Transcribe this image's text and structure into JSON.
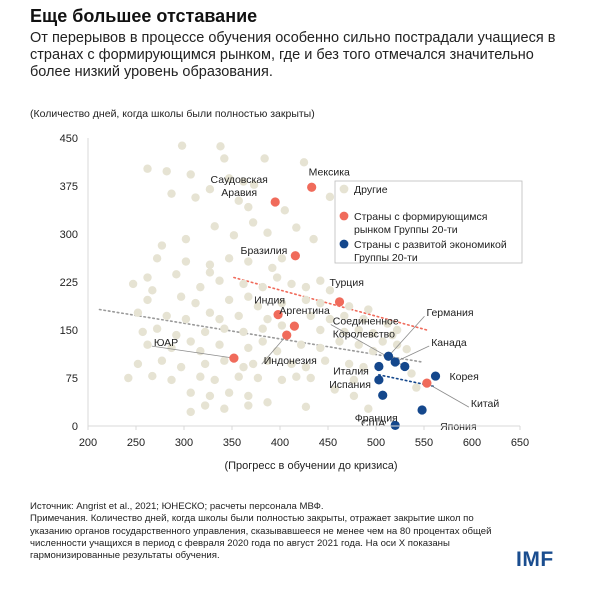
{
  "title": "Еще большее отставание",
  "subtitle": "От перерывов в процессе обучения особенно сильно пострадали учащиеся в странах с формирующимся рынком, где и без того отмечался значительно более низкий уровень образования.",
  "unit_note": "(Количество дней, когда школы были полностью закрыты)",
  "footer": {
    "source": "Источник: Angrist et al., 2021; ЮНЕСКО; расчеты персонала МВФ.",
    "note": "Примечания. Количество дней, когда школы были полностью закрыты, отражает закрытие школ по указанию органов государственного управления, сказывавшееся не менее чем на 80 процентах общей численности учащихся в период с февраля 2020 года по август 2021 года. На оси X показаны гармонизированные результаты обучения."
  },
  "logo": "IMF",
  "colors": {
    "other": "#e6e3d3",
    "emerging": "#f06b5b",
    "advanced": "#14478c",
    "axis": "#d9d9d9",
    "label": "#222222"
  },
  "chart_data": {
    "type": "scatter",
    "xlabel": "(Прогресс в обучении до кризиса)",
    "ylabel": "",
    "xlim": [
      200,
      650
    ],
    "ylim": [
      0,
      450
    ],
    "xticks": [
      "200",
      "250",
      "300",
      "350",
      "400",
      "450",
      "500",
      "550",
      "600",
      "650"
    ],
    "yticks": [
      "0",
      "75",
      "150",
      "225",
      "300",
      "375",
      "450"
    ],
    "legend": {
      "placement": "top-right",
      "entries": [
        "Другие",
        "Страны с формирующимся рынком Группы 20-ти",
        "Страны с развитой экономикой Группы 20-ти"
      ]
    },
    "series": [
      {
        "name": "Страны с формирующимся рынком Группы 20-ти",
        "points": [
          {
            "label": "Мексика",
            "x": 433,
            "y": 373
          },
          {
            "label": "Саудовская Аравия",
            "x": 395,
            "y": 350
          },
          {
            "label": "Бразилия",
            "x": 416,
            "y": 266
          },
          {
            "label": "Турция",
            "x": 462,
            "y": 194
          },
          {
            "label": "Индия",
            "x": 398,
            "y": 174
          },
          {
            "label": "Аргентина",
            "x": 415,
            "y": 156
          },
          {
            "label": "Индонезия",
            "x": 407,
            "y": 142
          },
          {
            "label": "ЮАР",
            "x": 352,
            "y": 106
          },
          {
            "label": "Китай",
            "x": 553,
            "y": 67
          }
        ]
      },
      {
        "name": "Страны с развитой экономикой Группы 20-ти",
        "points": [
          {
            "label": "Германия",
            "x": 513,
            "y": 109
          },
          {
            "label": "Канада",
            "x": 520,
            "y": 100
          },
          {
            "label": "Соединенное Королевство",
            "x": 530,
            "y": 93
          },
          {
            "label": "Италия",
            "x": 503,
            "y": 93
          },
          {
            "label": "Корея",
            "x": 562,
            "y": 78
          },
          {
            "label": "Испания",
            "x": 503,
            "y": 72
          },
          {
            "label": "Франция",
            "x": 507,
            "y": 48
          },
          {
            "label": "Япония",
            "x": 548,
            "y": 25
          },
          {
            "label": "США",
            "x": 520,
            "y": 1
          }
        ]
      },
      {
        "name": "Другие",
        "points": [
          {
            "x": 298,
            "y": 438
          },
          {
            "x": 338,
            "y": 437
          },
          {
            "x": 342,
            "y": 418
          },
          {
            "x": 384,
            "y": 418
          },
          {
            "x": 425,
            "y": 412
          },
          {
            "x": 262,
            "y": 402
          },
          {
            "x": 282,
            "y": 398
          },
          {
            "x": 307,
            "y": 393
          },
          {
            "x": 347,
            "y": 387
          },
          {
            "x": 362,
            "y": 382
          },
          {
            "x": 373,
            "y": 377
          },
          {
            "x": 327,
            "y": 370
          },
          {
            "x": 287,
            "y": 363
          },
          {
            "x": 312,
            "y": 357
          },
          {
            "x": 357,
            "y": 352
          },
          {
            "x": 367,
            "y": 342
          },
          {
            "x": 405,
            "y": 337
          },
          {
            "x": 452,
            "y": 358
          },
          {
            "x": 417,
            "y": 310
          },
          {
            "x": 372,
            "y": 318
          },
          {
            "x": 332,
            "y": 312
          },
          {
            "x": 302,
            "y": 292
          },
          {
            "x": 277,
            "y": 282
          },
          {
            "x": 352,
            "y": 298
          },
          {
            "x": 387,
            "y": 302
          },
          {
            "x": 435,
            "y": 292
          },
          {
            "x": 272,
            "y": 262
          },
          {
            "x": 302,
            "y": 257
          },
          {
            "x": 327,
            "y": 252
          },
          {
            "x": 347,
            "y": 262
          },
          {
            "x": 367,
            "y": 257
          },
          {
            "x": 392,
            "y": 247
          },
          {
            "x": 402,
            "y": 262
          },
          {
            "x": 327,
            "y": 240
          },
          {
            "x": 292,
            "y": 237
          },
          {
            "x": 262,
            "y": 232
          },
          {
            "x": 247,
            "y": 222
          },
          {
            "x": 267,
            "y": 212
          },
          {
            "x": 317,
            "y": 217
          },
          {
            "x": 337,
            "y": 227
          },
          {
            "x": 362,
            "y": 222
          },
          {
            "x": 382,
            "y": 217
          },
          {
            "x": 397,
            "y": 232
          },
          {
            "x": 412,
            "y": 222
          },
          {
            "x": 427,
            "y": 217
          },
          {
            "x": 442,
            "y": 227
          },
          {
            "x": 452,
            "y": 212
          },
          {
            "x": 262,
            "y": 197
          },
          {
            "x": 297,
            "y": 202
          },
          {
            "x": 312,
            "y": 192
          },
          {
            "x": 347,
            "y": 197
          },
          {
            "x": 367,
            "y": 202
          },
          {
            "x": 377,
            "y": 187
          },
          {
            "x": 402,
            "y": 192
          },
          {
            "x": 427,
            "y": 197
          },
          {
            "x": 442,
            "y": 192
          },
          {
            "x": 472,
            "y": 187
          },
          {
            "x": 492,
            "y": 182
          },
          {
            "x": 252,
            "y": 177
          },
          {
            "x": 282,
            "y": 172
          },
          {
            "x": 302,
            "y": 167
          },
          {
            "x": 327,
            "y": 177
          },
          {
            "x": 337,
            "y": 167
          },
          {
            "x": 357,
            "y": 172
          },
          {
            "x": 387,
            "y": 167
          },
          {
            "x": 432,
            "y": 172
          },
          {
            "x": 452,
            "y": 167
          },
          {
            "x": 467,
            "y": 172
          },
          {
            "x": 487,
            "y": 167
          },
          {
            "x": 257,
            "y": 147
          },
          {
            "x": 272,
            "y": 152
          },
          {
            "x": 292,
            "y": 142
          },
          {
            "x": 322,
            "y": 147
          },
          {
            "x": 342,
            "y": 152
          },
          {
            "x": 362,
            "y": 147
          },
          {
            "x": 382,
            "y": 152
          },
          {
            "x": 402,
            "y": 157
          },
          {
            "x": 442,
            "y": 150
          },
          {
            "x": 467,
            "y": 147
          },
          {
            "x": 482,
            "y": 150
          },
          {
            "x": 497,
            "y": 145
          },
          {
            "x": 512,
            "y": 160
          },
          {
            "x": 517,
            "y": 142
          },
          {
            "x": 522,
            "y": 150
          },
          {
            "x": 262,
            "y": 127
          },
          {
            "x": 287,
            "y": 122
          },
          {
            "x": 307,
            "y": 132
          },
          {
            "x": 317,
            "y": 117
          },
          {
            "x": 337,
            "y": 127
          },
          {
            "x": 367,
            "y": 122
          },
          {
            "x": 382,
            "y": 132
          },
          {
            "x": 397,
            "y": 117
          },
          {
            "x": 422,
            "y": 127
          },
          {
            "x": 442,
            "y": 122
          },
          {
            "x": 462,
            "y": 132
          },
          {
            "x": 482,
            "y": 127
          },
          {
            "x": 497,
            "y": 117
          },
          {
            "x": 507,
            "y": 132
          },
          {
            "x": 522,
            "y": 127
          },
          {
            "x": 532,
            "y": 120
          },
          {
            "x": 252,
            "y": 97
          },
          {
            "x": 277,
            "y": 102
          },
          {
            "x": 297,
            "y": 92
          },
          {
            "x": 322,
            "y": 97
          },
          {
            "x": 342,
            "y": 102
          },
          {
            "x": 362,
            "y": 92
          },
          {
            "x": 372,
            "y": 97
          },
          {
            "x": 387,
            "y": 102
          },
          {
            "x": 412,
            "y": 97
          },
          {
            "x": 427,
            "y": 92
          },
          {
            "x": 447,
            "y": 102
          },
          {
            "x": 472,
            "y": 97
          },
          {
            "x": 487,
            "y": 92
          },
          {
            "x": 242,
            "y": 75
          },
          {
            "x": 267,
            "y": 78
          },
          {
            "x": 287,
            "y": 72
          },
          {
            "x": 317,
            "y": 77
          },
          {
            "x": 332,
            "y": 72
          },
          {
            "x": 357,
            "y": 77
          },
          {
            "x": 377,
            "y": 75
          },
          {
            "x": 402,
            "y": 72
          },
          {
            "x": 417,
            "y": 77
          },
          {
            "x": 432,
            "y": 75
          },
          {
            "x": 477,
            "y": 72
          },
          {
            "x": 307,
            "y": 52
          },
          {
            "x": 327,
            "y": 47
          },
          {
            "x": 347,
            "y": 52
          },
          {
            "x": 367,
            "y": 47
          },
          {
            "x": 457,
            "y": 57
          },
          {
            "x": 322,
            "y": 32
          },
          {
            "x": 342,
            "y": 27
          },
          {
            "x": 367,
            "y": 32
          },
          {
            "x": 387,
            "y": 37
          },
          {
            "x": 427,
            "y": 30
          },
          {
            "x": 307,
            "y": 22
          },
          {
            "x": 492,
            "y": 27
          },
          {
            "x": 477,
            "y": 47
          },
          {
            "x": 537,
            "y": 82
          },
          {
            "x": 542,
            "y": 60
          }
        ]
      }
    ],
    "trendlines": [
      {
        "series": "Другие",
        "style": "dotted",
        "from": [
          212,
          182
        ],
        "to": [
          548,
          100
        ]
      },
      {
        "series": "Страны с формирующимся рынком Группы 20-ти",
        "style": "dotted",
        "from": [
          352,
          232
        ],
        "to": [
          553,
          150
        ]
      },
      {
        "series": "Страны с развитой экономикой Группы 20-ти",
        "style": "dotted",
        "from": [
          503,
          80
        ],
        "to": [
          560,
          62
        ]
      }
    ]
  }
}
